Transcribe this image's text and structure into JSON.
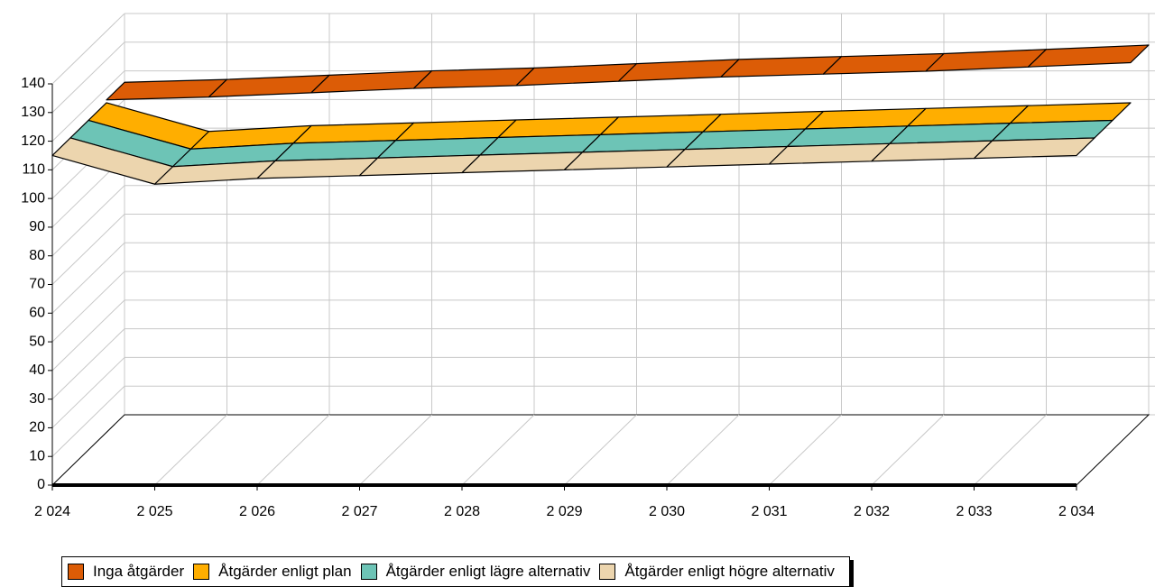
{
  "chart_data": {
    "type": "line3d",
    "categories": [
      "2 024",
      "2 025",
      "2 026",
      "2 027",
      "2 028",
      "2 029",
      "2 030",
      "2 031",
      "2 032",
      "2 033",
      "2 034"
    ],
    "series": [
      {
        "name": "Inga åtgärder",
        "color": "#dc5c06",
        "values": [
          116,
          117,
          118.5,
          120,
          121,
          122.5,
          124,
          125,
          126,
          127.5,
          129
        ]
      },
      {
        "name": "Åtgärder enligt plan",
        "color": "#ffae00",
        "values": [
          115,
          105,
          107,
          108,
          109,
          110,
          111,
          112,
          113,
          114,
          115
        ]
      },
      {
        "name": "Åtgärder enligt lägre alternativ",
        "color": "#6dc4b6",
        "values": [
          115,
          105,
          107,
          108,
          109,
          110,
          111,
          112,
          113,
          114,
          115
        ]
      },
      {
        "name": "Åtgärder enligt högre alternativ",
        "color": "#ecd5ae",
        "values": [
          115,
          105,
          107,
          108,
          109,
          110,
          111,
          112,
          113,
          114,
          115
        ]
      }
    ],
    "ylim": [
      0,
      140
    ],
    "yticks": [
      0,
      10,
      20,
      30,
      40,
      50,
      60,
      70,
      80,
      90,
      100,
      110,
      120,
      130,
      140
    ],
    "grid": true
  }
}
